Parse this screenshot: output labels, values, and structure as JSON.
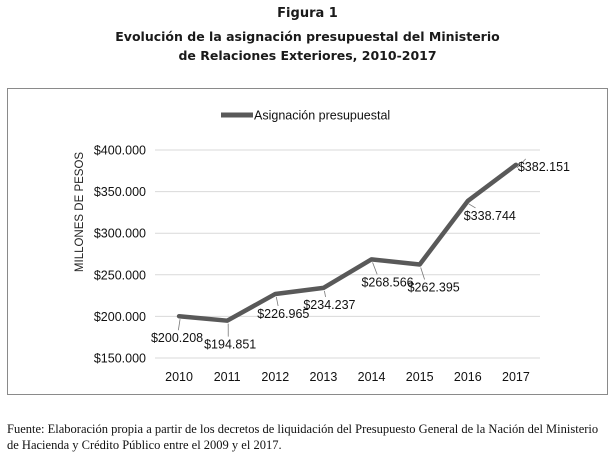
{
  "figure": {
    "label": "Figura 1",
    "title_lines": [
      "Evolución de la asignación presupuestal del Ministerio",
      "de Relaciones Exteriores, 2010-2017"
    ],
    "source": "Fuente: Elaboración propia a partir de los decretos de liquidación del Presupuesto General de la Nación del Ministerio de Hacienda y Crédito Público entre el 2009 y el 2017."
  },
  "chart_data": {
    "type": "line",
    "title": "",
    "ylabel": "MILLONES DE PESOS",
    "xlabel": "",
    "categories": [
      "2010",
      "2011",
      "2012",
      "2013",
      "2014",
      "2015",
      "2016",
      "2017"
    ],
    "series": [
      {
        "name": "Asignación presupuestal",
        "values": [
          200208,
          194851,
          226965,
          234237,
          268566,
          262395,
          338744,
          382151
        ],
        "data_labels": [
          "$200.208",
          "$194.851",
          "$226.965",
          "$234.237",
          "$268.566",
          "$262.395",
          "$338.744",
          "$382.151"
        ],
        "color": "#595959"
      }
    ],
    "ylim": [
      150000,
      400000
    ],
    "yticks": [
      150000,
      200000,
      250000,
      300000,
      350000,
      400000
    ],
    "ytick_labels": [
      "$150.000",
      "$200.000",
      "$250.000",
      "$300.000",
      "$350.000",
      "$400.000"
    ],
    "grid": true,
    "legend_position": "top-center"
  }
}
